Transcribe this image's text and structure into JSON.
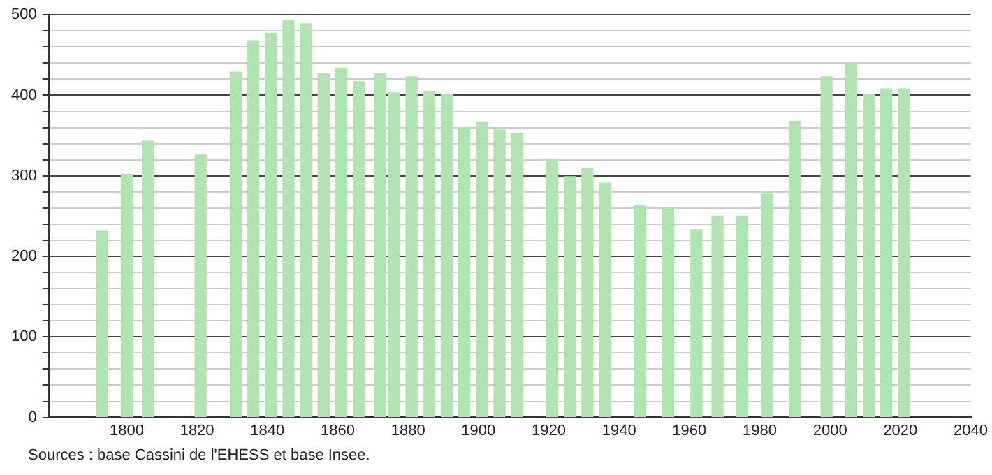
{
  "chart_data": {
    "type": "bar",
    "x": [
      1793,
      1800,
      1806,
      1821,
      1831,
      1836,
      1841,
      1846,
      1851,
      1856,
      1861,
      1866,
      1872,
      1876,
      1881,
      1886,
      1891,
      1896,
      1901,
      1906,
      1911,
      1921,
      1926,
      1931,
      1936,
      1946,
      1954,
      1962,
      1968,
      1975,
      1982,
      1990,
      1999,
      2006,
      2011,
      2016,
      2021
    ],
    "values": [
      232,
      302,
      343,
      326,
      429,
      468,
      477,
      493,
      489,
      427,
      434,
      417,
      427,
      403,
      423,
      405,
      401,
      360,
      367,
      357,
      353,
      319,
      299,
      309,
      291,
      263,
      259,
      233,
      250,
      250,
      277,
      368,
      423,
      439,
      401,
      408,
      408
    ],
    "color": "#b0e4b0",
    "xlim": [
      1778,
      2040
    ],
    "xticks": [
      1800,
      1820,
      1840,
      1860,
      1880,
      1900,
      1920,
      1940,
      1960,
      1980,
      2000,
      2020,
      2040
    ],
    "ylim": [
      0,
      500
    ],
    "yticks": [
      0,
      {
        "value": 20,
        "label": null
      },
      {
        "value": 40,
        "label": null
      },
      {
        "value": 60,
        "label": null
      },
      {
        "value": 80,
        "label": null
      },
      100,
      {
        "value": 120,
        "label": null
      },
      {
        "value": 140,
        "label": null
      },
      {
        "value": 160,
        "label": null
      },
      {
        "value": 180,
        "label": null
      },
      200,
      {
        "value": 220,
        "label": null
      },
      {
        "value": 240,
        "label": null
      },
      {
        "value": 260,
        "label": null
      },
      {
        "value": 280,
        "label": null
      },
      300,
      {
        "value": 320,
        "label": null
      },
      {
        "value": 340,
        "label": null
      },
      {
        "value": 360,
        "label": null
      },
      {
        "value": 380,
        "label": null
      },
      400,
      {
        "value": 420,
        "label": null
      },
      {
        "value": 440,
        "label": null
      },
      {
        "value": 460,
        "label": null
      },
      {
        "value": 480,
        "label": null
      },
      500
    ],
    "grid": "y",
    "annotations": [
      "Sources : base Cassini de l'EHESS et base Insee."
    ]
  }
}
